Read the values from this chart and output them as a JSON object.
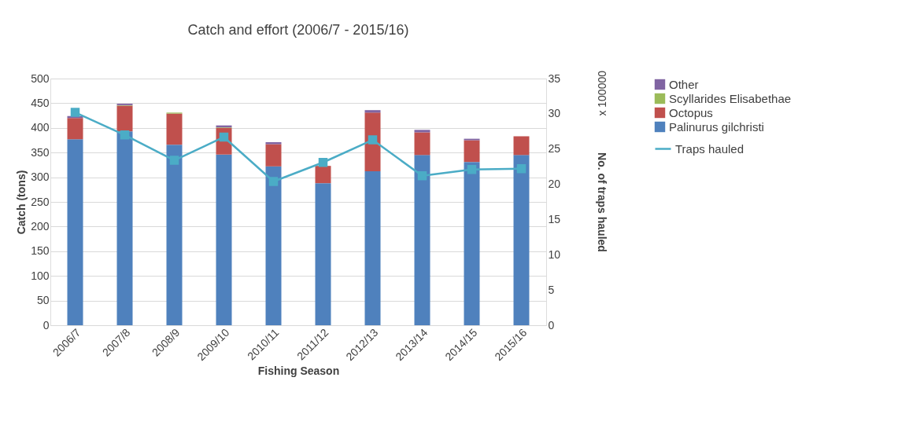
{
  "chart_data": {
    "type": "bar",
    "title": "Catch and effort (2006/7 - 2015/16)",
    "xlabel": "Fishing Season",
    "ylabel": "Catch (tons)",
    "y2label": "No. of traps hauled",
    "annotations": [
      "x 100000"
    ],
    "categories": [
      "2006/7",
      "2007/8",
      "2008/9",
      "2009/10",
      "2010/11",
      "2011/12",
      "2012/13",
      "2013/14",
      "2014/15",
      "2015/16"
    ],
    "stacked": true,
    "series": [
      {
        "name": "Palinurus gilchristi",
        "color": "#4f81bd",
        "values": [
          377,
          393,
          366,
          346,
          322,
          288,
          312,
          345,
          331,
          345
        ]
      },
      {
        "name": "Octopus",
        "color": "#c0504d",
        "values": [
          43,
          52,
          63,
          54,
          45,
          35,
          119,
          46,
          44,
          38
        ]
      },
      {
        "name": "Scyllarides Elisabethae",
        "color": "#9bbb59",
        "values": [
          null,
          1,
          2,
          1,
          0,
          0,
          null,
          0,
          0,
          0
        ]
      },
      {
        "name": "Other",
        "color": "#8064a2",
        "values": [
          4,
          3,
          null,
          4,
          4,
          null,
          5,
          5,
          3,
          null
        ]
      },
      {
        "name": "Traps hauled",
        "type": "line",
        "axis": "y2",
        "color": "#4bacc6",
        "marker": "square",
        "values": [
          30.2,
          27,
          23.4,
          26.7,
          20.4,
          23.1,
          26.3,
          21.2,
          22.1,
          22.2
        ]
      }
    ],
    "ylim": [
      0,
      500
    ],
    "yticks": [
      0,
      50,
      100,
      150,
      200,
      250,
      300,
      350,
      400,
      450,
      500
    ],
    "y2lim": [
      0,
      35
    ],
    "y2ticks": [
      0,
      5,
      10,
      15,
      20,
      25,
      30,
      35
    ],
    "grid": "y",
    "legend": "right"
  }
}
